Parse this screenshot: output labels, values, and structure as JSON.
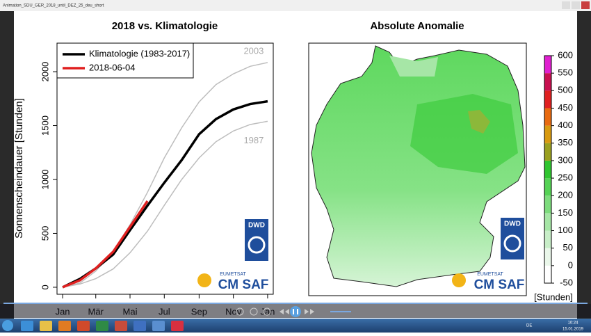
{
  "window": {
    "title": "Animation_SDU_GER_2018_until_DEZ_25_deu_short"
  },
  "logos": {
    "dwd": "DWD",
    "eumetsat": "EUMETSAT",
    "cmsaf": "CM SAF"
  },
  "chart_data": [
    {
      "type": "line",
      "title": "2018 vs. Klimatologie",
      "y_label": "Sonnenscheindauer [Stunden]",
      "x": [
        0,
        31,
        59,
        90,
        120,
        151,
        181,
        212,
        243,
        273,
        304,
        334,
        365
      ],
      "xlim": [
        -10,
        375
      ],
      "xticks": [
        {
          "value": 0,
          "label": "Jan"
        },
        {
          "value": 59,
          "label": "Mär"
        },
        {
          "value": 120,
          "label": "Mai"
        },
        {
          "value": 181,
          "label": "Jul"
        },
        {
          "value": 243,
          "label": "Sep"
        },
        {
          "value": 304,
          "label": "Nov"
        },
        {
          "value": 365,
          "label": "Jan"
        }
      ],
      "ylim": [
        -65,
        2265
      ],
      "yticks": [
        0,
        500,
        1000,
        1500,
        2000
      ],
      "legend": "top-left",
      "annotations": [
        {
          "text": "2003",
          "color": "#bdbdbd",
          "values": [
            0,
            40,
            150,
            330,
            580,
            880,
            1200,
            1480,
            1720,
            1880,
            1980,
            2050,
            2085
          ]
        },
        {
          "text": "1987",
          "color": "#bdbdbd",
          "values": [
            0,
            30,
            80,
            170,
            320,
            520,
            760,
            1000,
            1200,
            1350,
            1450,
            1510,
            1540
          ]
        }
      ],
      "series": [
        {
          "name": "Klimatologie (1983-2017)",
          "color": "#000000",
          "values": [
            0,
            78,
            175,
            304,
            530,
            757,
            970,
            1180,
            1420,
            1560,
            1650,
            1700,
            1725
          ]
        },
        {
          "name": "2018-06-04",
          "color": "#e02020",
          "values": [
            0,
            65,
            175,
            330,
            560,
            800,
            null,
            null,
            null,
            null,
            null,
            null,
            null
          ]
        }
      ]
    },
    {
      "type": "map",
      "title": "Absolute Anomalie",
      "colorbar_label": "[Stunden]",
      "colorbar_lim": [
        -50,
        600
      ],
      "colorbar_ticks": [
        -50,
        0,
        50,
        100,
        150,
        200,
        250,
        300,
        350,
        400,
        450,
        500,
        550,
        600
      ],
      "colorbar_colors": [
        "#ffffff",
        "#eaf7ea",
        "#c8eec8",
        "#a6e6a6",
        "#7ddc7d",
        "#55d255",
        "#2fc52f",
        "#9aa020",
        "#d89a10",
        "#e86a10",
        "#e02020",
        "#c81050",
        "#e020d0"
      ]
    }
  ],
  "taskbar": {
    "language": "DE",
    "time": "10:24",
    "date": "15.01.2019"
  }
}
